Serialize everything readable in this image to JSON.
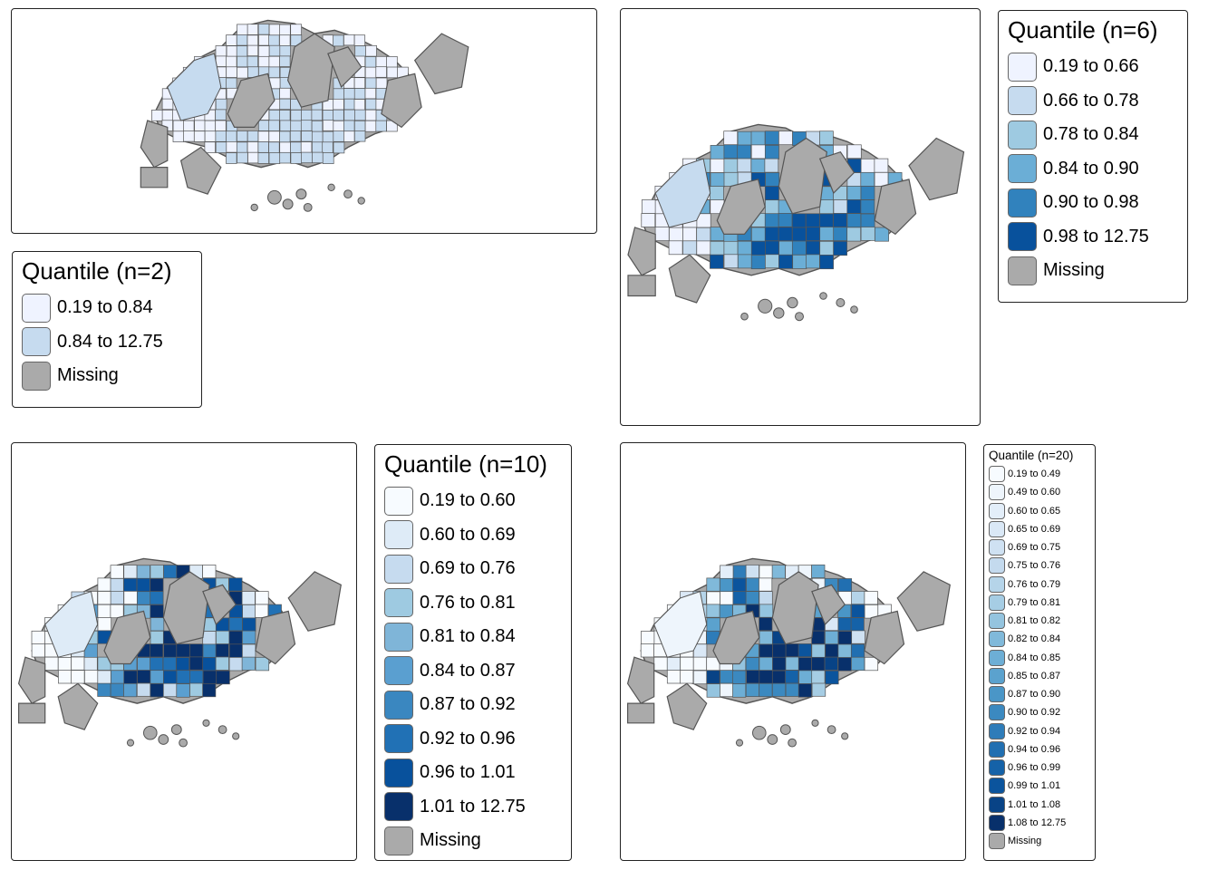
{
  "colors": {
    "missing": "#aaaaaa",
    "border": "#555555"
  },
  "panels": [
    {
      "id": "q2",
      "legend": {
        "title": "Quantile (n=2)",
        "items": [
          {
            "label": "0.19 to 0.84",
            "color": "#eff3ff"
          },
          {
            "label": "0.84 to 12.75",
            "color": "#c6dbef"
          }
        ],
        "missing_label": "Missing"
      }
    },
    {
      "id": "q6",
      "legend": {
        "title": "Quantile (n=6)",
        "items": [
          {
            "label": "0.19 to 0.66",
            "color": "#eff3ff"
          },
          {
            "label": "0.66 to 0.78",
            "color": "#c6dbef"
          },
          {
            "label": "0.78 to 0.84",
            "color": "#9ecae1"
          },
          {
            "label": "0.84 to 0.90",
            "color": "#6baed6"
          },
          {
            "label": "0.90 to 0.98",
            "color": "#3182bd"
          },
          {
            "label": "0.98 to 12.75",
            "color": "#08519c"
          }
        ],
        "missing_label": "Missing"
      }
    },
    {
      "id": "q10",
      "legend": {
        "title": "Quantile (n=10)",
        "items": [
          {
            "label": "0.19 to 0.60",
            "color": "#f7fbff"
          },
          {
            "label": "0.60 to 0.69",
            "color": "#deebf7"
          },
          {
            "label": "0.69 to 0.76",
            "color": "#c6dbef"
          },
          {
            "label": "0.76 to 0.81",
            "color": "#9ecae1"
          },
          {
            "label": "0.81 to 0.84",
            "color": "#7fb5d8"
          },
          {
            "label": "0.84 to 0.87",
            "color": "#5a9fd0"
          },
          {
            "label": "0.87 to 0.92",
            "color": "#3a87c0"
          },
          {
            "label": "0.92 to 0.96",
            "color": "#2171b5"
          },
          {
            "label": "0.96 to 1.01",
            "color": "#08519c"
          },
          {
            "label": "1.01 to 12.75",
            "color": "#08306b"
          }
        ],
        "missing_label": "Missing"
      }
    },
    {
      "id": "q20",
      "legend": {
        "title": "Quantile (n=20)",
        "items": [
          {
            "label": "0.19 to 0.49",
            "color": "#f7fbff"
          },
          {
            "label": "0.49 to 0.60",
            "color": "#eef5fc"
          },
          {
            "label": "0.60 to 0.65",
            "color": "#e3eef9"
          },
          {
            "label": "0.65 to 0.69",
            "color": "#dae8f6"
          },
          {
            "label": "0.69 to 0.75",
            "color": "#cfe1f2"
          },
          {
            "label": "0.75 to 0.76",
            "color": "#c4daee"
          },
          {
            "label": "0.76 to 0.79",
            "color": "#b5d4e9"
          },
          {
            "label": "0.79 to 0.81",
            "color": "#a6cde4"
          },
          {
            "label": "0.81 to 0.82",
            "color": "#94c4df"
          },
          {
            "label": "0.82 to 0.84",
            "color": "#80b9da"
          },
          {
            "label": "0.84 to 0.85",
            "color": "#6daed5"
          },
          {
            "label": "0.85 to 0.87",
            "color": "#5ba2ce"
          },
          {
            "label": "0.87 to 0.90",
            "color": "#4a96c7"
          },
          {
            "label": "0.90 to 0.92",
            "color": "#3b89c0"
          },
          {
            "label": "0.92 to 0.94",
            "color": "#2e7cb9"
          },
          {
            "label": "0.94 to 0.96",
            "color": "#216fb1"
          },
          {
            "label": "0.96 to 0.99",
            "color": "#1562a8"
          },
          {
            "label": "0.99 to 1.01",
            "color": "#0b549d"
          },
          {
            "label": "1.01 to 1.08",
            "color": "#084386"
          },
          {
            "label": "1.08 to 12.75",
            "color": "#08306b"
          }
        ],
        "missing_label": "Missing"
      }
    }
  ]
}
